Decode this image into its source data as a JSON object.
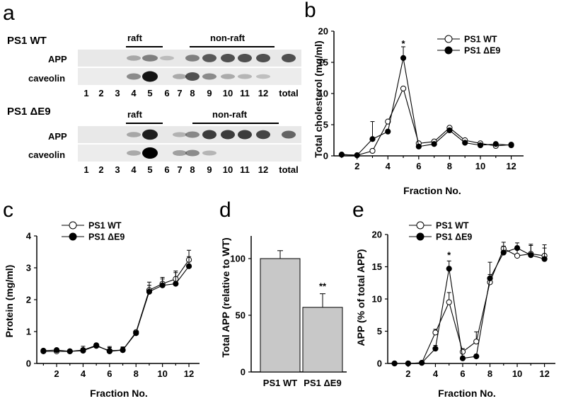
{
  "panel_a": {
    "letter": "a",
    "groups": [
      {
        "title": "PS1 WT",
        "raft_label": "raft",
        "nonraft_label": "non-raft",
        "rows": [
          {
            "label": "APP",
            "band_intensities": [
              0.0,
              0.0,
              0.0,
              0.15,
              0.35,
              0.05,
              0.0,
              0.35,
              0.55,
              0.6,
              0.6,
              0.6,
              0.6
            ]
          },
          {
            "label": "caveolin",
            "band_intensities": [
              0.0,
              0.0,
              0.0,
              0.3,
              0.9,
              0.0,
              0.15,
              0.6,
              0.3,
              0.15,
              0.1,
              0.05,
              0.0
            ]
          }
        ],
        "lanes": [
          "1",
          "2",
          "3",
          "4",
          "5",
          "6",
          "7",
          "8",
          "9",
          "10",
          "11",
          "12",
          "total"
        ]
      },
      {
        "title": "PS1 ΔE9",
        "raft_label": "raft",
        "nonraft_label": "non-raft",
        "rows": [
          {
            "label": "APP",
            "band_intensities": [
              0.0,
              0.0,
              0.0,
              0.15,
              0.85,
              0.0,
              0.1,
              0.3,
              0.7,
              0.7,
              0.7,
              0.65,
              0.5
            ]
          },
          {
            "label": "caveolin",
            "band_intensities": [
              0.0,
              0.0,
              0.0,
              0.15,
              1.0,
              0.0,
              0.2,
              0.3,
              0.1,
              0.0,
              0.0,
              0.0,
              0.0
            ]
          }
        ],
        "lanes": [
          "1",
          "2",
          "3",
          "4",
          "5",
          "6",
          "7",
          "8",
          "9",
          "10",
          "11",
          "12",
          "total"
        ]
      }
    ]
  },
  "chart_data": [
    {
      "panel": "b",
      "type": "line",
      "xlabel": "Fraction No.",
      "ylabel": "Total cholesterol (mg/ml)",
      "xlim": [
        0.5,
        12.8
      ],
      "ylim": [
        0,
        20
      ],
      "xticks": [
        2,
        4,
        6,
        8,
        10,
        12
      ],
      "yticks": [
        0,
        5,
        10,
        15,
        20
      ],
      "legend": [
        "PS1 WT",
        "PS1 ΔE9"
      ],
      "series": [
        {
          "name": "PS1 WT",
          "marker": "open",
          "x": [
            1,
            2,
            3,
            4,
            5,
            6,
            7,
            8,
            9,
            10,
            11,
            12
          ],
          "y": [
            0.2,
            0.1,
            0.8,
            5.5,
            10.8,
            2.0,
            2.3,
            4.5,
            2.5,
            2.0,
            1.6,
            1.8
          ],
          "err": [
            0,
            0,
            0,
            0,
            0,
            0,
            0,
            0,
            0,
            0,
            0,
            0
          ]
        },
        {
          "name": "PS1 ΔE9",
          "marker": "filled",
          "x": [
            1,
            2,
            3,
            4,
            5,
            6,
            7,
            8,
            9,
            10,
            11,
            12
          ],
          "y": [
            0.2,
            0.1,
            2.7,
            3.9,
            15.7,
            1.5,
            1.9,
            4.1,
            2.1,
            1.7,
            1.9,
            1.7
          ],
          "err": [
            0,
            0,
            2.8,
            0,
            1.8,
            0,
            0,
            0,
            0,
            0,
            0,
            0
          ]
        }
      ],
      "annotations": [
        {
          "x": 5,
          "y": 18.2,
          "text": "*"
        }
      ]
    },
    {
      "panel": "c",
      "type": "line",
      "xlabel": "Fraction No.",
      "ylabel": "Protein (mg/ml)",
      "xlim": [
        0.5,
        12.8
      ],
      "ylim": [
        0,
        4
      ],
      "xticks": [
        2,
        4,
        6,
        8,
        10,
        12
      ],
      "yticks": [
        0,
        1,
        2,
        3,
        4
      ],
      "legend": [
        "PS1 WT",
        "PS1 ΔE9"
      ],
      "series": [
        {
          "name": "PS1 WT",
          "marker": "open",
          "x": [
            1,
            2,
            3,
            4,
            5,
            6,
            7,
            8,
            9,
            10,
            11,
            12
          ],
          "y": [
            0.38,
            0.38,
            0.38,
            0.4,
            0.55,
            0.4,
            0.42,
            0.98,
            2.3,
            2.5,
            2.65,
            3.25
          ],
          "err": [
            0.05,
            0.05,
            0.05,
            0.08,
            0.08,
            0.1,
            0.08,
            0.05,
            0.25,
            0.2,
            0.25,
            0.3
          ]
        },
        {
          "name": "PS1 ΔE9",
          "marker": "filled",
          "x": [
            1,
            2,
            3,
            4,
            5,
            6,
            7,
            8,
            9,
            10,
            11,
            12
          ],
          "y": [
            0.4,
            0.42,
            0.38,
            0.42,
            0.57,
            0.38,
            0.42,
            0.95,
            2.25,
            2.45,
            2.5,
            3.05
          ],
          "err": [
            0.05,
            0.05,
            0.05,
            0.12,
            0.05,
            0.15,
            0.1,
            0.05,
            0.2,
            0.2,
            0.35,
            0.3
          ]
        }
      ]
    },
    {
      "panel": "d",
      "type": "bar",
      "ylabel": "Total APP (relative to WT)",
      "ylim": [
        0,
        120
      ],
      "yticks": [
        0,
        50,
        100
      ],
      "categories": [
        "PS1 WT",
        "PS1 ΔE9"
      ],
      "values": [
        100,
        57
      ],
      "errors": [
        7,
        12
      ],
      "annotations": [
        {
          "category": "PS1 ΔE9",
          "text": "**"
        }
      ]
    },
    {
      "panel": "e",
      "type": "line",
      "xlabel": "Fraction No.",
      "ylabel": "APP (% of total APP)",
      "xlim": [
        0.5,
        12.8
      ],
      "ylim": [
        0,
        20
      ],
      "xticks": [
        2,
        4,
        6,
        8,
        10,
        12
      ],
      "yticks": [
        0,
        5,
        10,
        15,
        20
      ],
      "legend": [
        "PS1 WT",
        "PS1 ΔE9"
      ],
      "series": [
        {
          "name": "PS1 WT",
          "marker": "open",
          "x": [
            1,
            2,
            3,
            4,
            5,
            6,
            7,
            8,
            9,
            10,
            11,
            12
          ],
          "y": [
            0,
            0,
            0.1,
            4.8,
            9.5,
            1.8,
            3.4,
            12.6,
            17.8,
            16.7,
            17.0,
            16.7
          ],
          "err": [
            0,
            0,
            0,
            0.5,
            1.5,
            0.5,
            1.5,
            1.2,
            1.0,
            1.5,
            1.5,
            1.2
          ]
        },
        {
          "name": "PS1 ΔE9",
          "marker": "filled",
          "x": [
            1,
            2,
            3,
            4,
            5,
            6,
            7,
            8,
            9,
            10,
            11,
            12
          ],
          "y": [
            0,
            0,
            0.1,
            2.3,
            14.7,
            0.8,
            1.1,
            13.2,
            17.2,
            17.9,
            16.8,
            16.2
          ],
          "err": [
            0,
            0,
            0,
            0.5,
            1.2,
            0.3,
            0.3,
            2.5,
            1.0,
            0.8,
            1.5,
            2.2
          ]
        }
      ],
      "annotations": [
        {
          "x": 5,
          "y": 17.0,
          "text": "*"
        }
      ]
    }
  ],
  "panel_letters": {
    "b": "b",
    "c": "c",
    "d": "d",
    "e": "e"
  }
}
